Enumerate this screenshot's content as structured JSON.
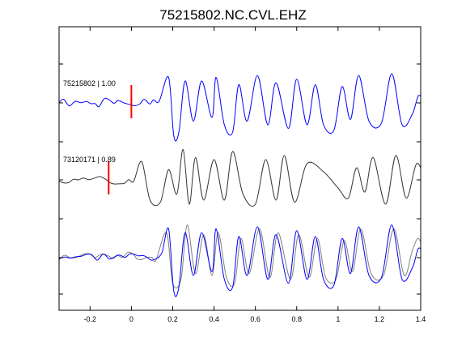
{
  "chart_data": {
    "type": "line",
    "title": "75215802.NC.CVL.EHZ",
    "xlabel": "",
    "ylabel": "",
    "xlim": [
      -0.35,
      1.4
    ],
    "x_ticks": [
      -0.2,
      0,
      0.2,
      0.4,
      0.6,
      0.8,
      1,
      1.2,
      1.4
    ],
    "x_tick_labels": [
      "-0.2",
      "0",
      "0.2",
      "0.4",
      "0.6",
      "0.8",
      "1",
      "1.2",
      "1.4"
    ],
    "grid": false,
    "colors": {
      "template": "#0000ff",
      "match": "#333333",
      "overlay_gray": "#808080",
      "pick": "#ff0000",
      "axes": "#000000"
    },
    "traces": [
      {
        "label": "75215802 | 1.00",
        "event_id": "75215802",
        "correlation": 1.0,
        "pick_time": 0.0,
        "color": "#0000ff"
      },
      {
        "label": "73120171 | 0.89",
        "event_id": "73120171",
        "correlation": 0.89,
        "pick_time": -0.11,
        "color": "#333333"
      }
    ],
    "series": [
      {
        "seed": 1,
        "onset": 0.15,
        "peaks": [
          [
            0.18,
            0.7
          ],
          [
            0.205,
            -0.9
          ],
          [
            0.23,
            -0.8
          ],
          [
            0.26,
            0.6
          ],
          [
            0.3,
            -0.5
          ],
          [
            0.34,
            0.6
          ],
          [
            0.39,
            -0.4
          ],
          [
            0.41,
            0.7
          ],
          [
            0.45,
            -0.6
          ],
          [
            0.49,
            -0.8
          ],
          [
            0.52,
            0.5
          ],
          [
            0.56,
            -0.5
          ],
          [
            0.61,
            0.75
          ],
          [
            0.66,
            -0.6
          ],
          [
            0.7,
            0.55
          ],
          [
            0.76,
            -0.7
          ],
          [
            0.8,
            0.65
          ],
          [
            0.85,
            -0.6
          ],
          [
            0.89,
            0.5
          ],
          [
            0.93,
            -0.6
          ],
          [
            0.98,
            -0.75
          ],
          [
            1.02,
            0.45
          ],
          [
            1.06,
            -0.45
          ],
          [
            1.1,
            0.75
          ],
          [
            1.15,
            -0.5
          ],
          [
            1.21,
            -0.55
          ],
          [
            1.26,
            0.8
          ],
          [
            1.31,
            -0.6
          ],
          [
            1.36,
            -0.3
          ],
          [
            1.39,
            0.2
          ]
        ]
      },
      {
        "seed": 2,
        "onset": 0.03,
        "peaks": [
          [
            0.05,
            0.45
          ],
          [
            0.09,
            -0.5
          ],
          [
            0.14,
            -0.55
          ],
          [
            0.18,
            0.25
          ],
          [
            0.22,
            -0.35
          ],
          [
            0.25,
            0.75
          ],
          [
            0.28,
            -0.6
          ],
          [
            0.31,
            0.55
          ],
          [
            0.35,
            -0.5
          ],
          [
            0.4,
            0.5
          ],
          [
            0.45,
            -0.5
          ],
          [
            0.49,
            0.7
          ],
          [
            0.54,
            -0.35
          ],
          [
            0.6,
            -0.6
          ],
          [
            0.65,
            0.5
          ],
          [
            0.7,
            -0.5
          ],
          [
            0.74,
            0.6
          ],
          [
            0.79,
            -0.55
          ],
          [
            0.85,
            0.4
          ],
          [
            0.93,
            0.2
          ],
          [
            1.0,
            -0.2
          ],
          [
            1.05,
            -0.45
          ],
          [
            1.09,
            0.3
          ],
          [
            1.13,
            -0.3
          ],
          [
            1.17,
            0.55
          ],
          [
            1.23,
            -0.6
          ],
          [
            1.28,
            0.6
          ],
          [
            1.33,
            -0.45
          ],
          [
            1.38,
            0.4
          ]
        ]
      },
      {
        "seed": 3,
        "onset": 0.15,
        "peaks": [
          [
            0.18,
            0.7
          ],
          [
            0.205,
            -0.9
          ],
          [
            0.23,
            -0.8
          ],
          [
            0.26,
            0.6
          ],
          [
            0.3,
            -0.5
          ],
          [
            0.34,
            0.6
          ],
          [
            0.39,
            -0.4
          ],
          [
            0.41,
            0.7
          ],
          [
            0.45,
            -0.6
          ],
          [
            0.49,
            -0.8
          ],
          [
            0.52,
            0.5
          ],
          [
            0.56,
            -0.5
          ],
          [
            0.61,
            0.75
          ],
          [
            0.66,
            -0.6
          ],
          [
            0.7,
            0.55
          ],
          [
            0.76,
            -0.7
          ],
          [
            0.8,
            0.65
          ],
          [
            0.85,
            -0.6
          ],
          [
            0.89,
            0.5
          ],
          [
            0.93,
            -0.6
          ],
          [
            0.98,
            -0.75
          ],
          [
            1.02,
            0.45
          ],
          [
            1.06,
            -0.45
          ],
          [
            1.1,
            0.75
          ],
          [
            1.15,
            -0.5
          ],
          [
            1.21,
            -0.55
          ],
          [
            1.26,
            0.8
          ],
          [
            1.31,
            -0.6
          ],
          [
            1.36,
            -0.3
          ],
          [
            1.39,
            0.2
          ]
        ]
      },
      {
        "seed": 4,
        "onset": 0.14,
        "peaks": [
          [
            0.17,
            0.6
          ],
          [
            0.2,
            -0.7
          ],
          [
            0.24,
            -0.6
          ],
          [
            0.27,
            0.8
          ],
          [
            0.31,
            -0.45
          ],
          [
            0.35,
            0.55
          ],
          [
            0.39,
            -0.5
          ],
          [
            0.42,
            0.6
          ],
          [
            0.46,
            -0.55
          ],
          [
            0.5,
            -0.7
          ],
          [
            0.53,
            0.45
          ],
          [
            0.57,
            -0.45
          ],
          [
            0.62,
            0.7
          ],
          [
            0.67,
            -0.55
          ],
          [
            0.71,
            0.6
          ],
          [
            0.77,
            -0.6
          ],
          [
            0.81,
            0.55
          ],
          [
            0.86,
            -0.55
          ],
          [
            0.9,
            0.45
          ],
          [
            0.94,
            -0.55
          ],
          [
            0.99,
            -0.6
          ],
          [
            1.03,
            0.4
          ],
          [
            1.07,
            -0.4
          ],
          [
            1.11,
            0.7
          ],
          [
            1.16,
            -0.45
          ],
          [
            1.22,
            -0.5
          ],
          [
            1.27,
            0.7
          ],
          [
            1.32,
            -0.5
          ],
          [
            1.36,
            0.15
          ],
          [
            1.39,
            0.45
          ]
        ]
      }
    ]
  }
}
